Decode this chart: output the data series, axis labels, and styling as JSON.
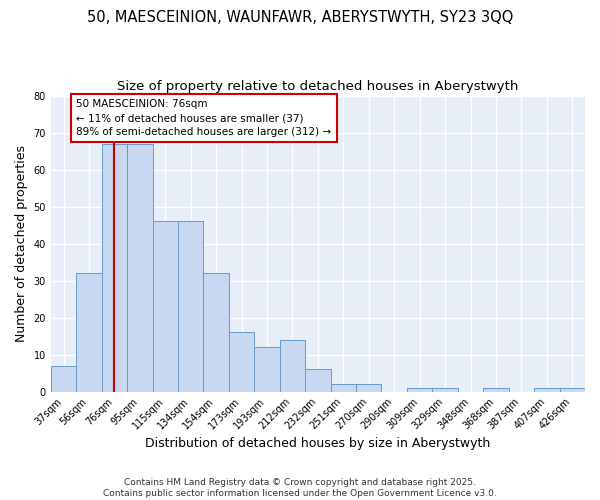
{
  "title": "50, MAESCEINION, WAUNFAWR, ABERYSTWYTH, SY23 3QQ",
  "subtitle": "Size of property relative to detached houses in Aberystwyth",
  "xlabel": "Distribution of detached houses by size in Aberystwyth",
  "ylabel": "Number of detached properties",
  "categories": [
    "37sqm",
    "56sqm",
    "76sqm",
    "95sqm",
    "115sqm",
    "134sqm",
    "154sqm",
    "173sqm",
    "193sqm",
    "212sqm",
    "232sqm",
    "251sqm",
    "270sqm",
    "290sqm",
    "309sqm",
    "329sqm",
    "348sqm",
    "368sqm",
    "387sqm",
    "407sqm",
    "426sqm"
  ],
  "values": [
    7,
    32,
    67,
    67,
    46,
    46,
    32,
    16,
    12,
    14,
    6,
    2,
    2,
    0,
    1,
    1,
    0,
    1,
    0,
    1,
    1
  ],
  "bar_color": "#c8d8f0",
  "bar_edge_color": "#6699cc",
  "property_line_x": 2,
  "property_line_color": "#cc0000",
  "annotation_text": "50 MAESCEINION: 76sqm\n← 11% of detached houses are smaller (37)\n89% of semi-detached houses are larger (312) →",
  "annotation_box_color": "#cc0000",
  "annotation_text_color": "#000000",
  "ylim": [
    0,
    80
  ],
  "yticks": [
    0,
    10,
    20,
    30,
    40,
    50,
    60,
    70,
    80
  ],
  "footer_text": "Contains HM Land Registry data © Crown copyright and database right 2025.\nContains public sector information licensed under the Open Government Licence v3.0.",
  "background_color": "#ffffff",
  "plot_bg_color": "#e8eef8",
  "grid_color": "#ffffff",
  "title_fontsize": 10.5,
  "subtitle_fontsize": 9.5,
  "tick_fontsize": 7,
  "label_fontsize": 9,
  "footer_fontsize": 6.5
}
